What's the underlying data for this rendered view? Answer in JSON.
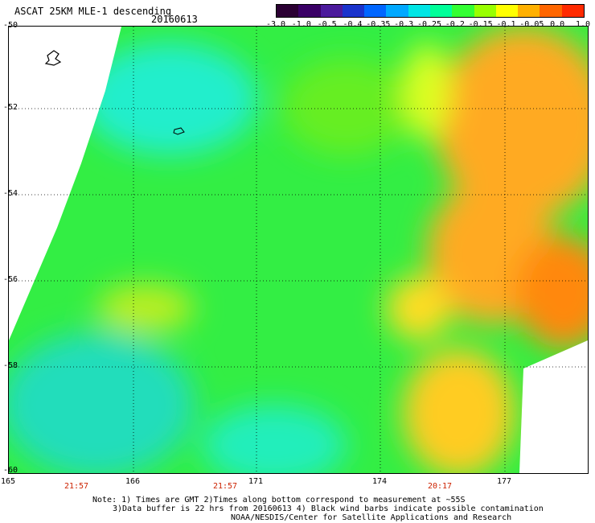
{
  "header": {
    "title": "ASCAT 25KM MLE-1 descending",
    "date": "20160613"
  },
  "colorbar": {
    "labels": [
      "-3.0",
      "-1.0",
      "-0.5",
      "-0.4",
      "-0.35",
      "-0.3",
      "-0.25",
      "-0.2",
      "-0.15",
      "-0.1",
      "-0.05",
      "0.0",
      "1.0"
    ],
    "colors": [
      "#2b0033",
      "#3a0066",
      "#4b1a9c",
      "#1a33cc",
      "#0066ff",
      "#00a8ff",
      "#00e5e5",
      "#00ff99",
      "#33ff33",
      "#99ff00",
      "#ffff00",
      "#ffb000",
      "#ff6600",
      "#ff2a00"
    ]
  },
  "axes": {
    "latitudes": [
      "-50",
      "-52",
      "-54",
      "-56",
      "-58",
      "-60"
    ],
    "longitudes": [
      "165",
      "166",
      "171",
      "174",
      "177"
    ]
  },
  "times": [
    "21:57",
    "21:57",
    "20:17"
  ],
  "notes": {
    "line1": "Note: 1) Times are GMT 2)Times along bottom correspond to measurement at ~55S",
    "line2": "3)Data buffer is 22 hrs from 20160613 4) Black wind barbs indicate possible contamination",
    "line3": "NOAA/NESDIS/Center for Satellite Applications and Research"
  }
}
